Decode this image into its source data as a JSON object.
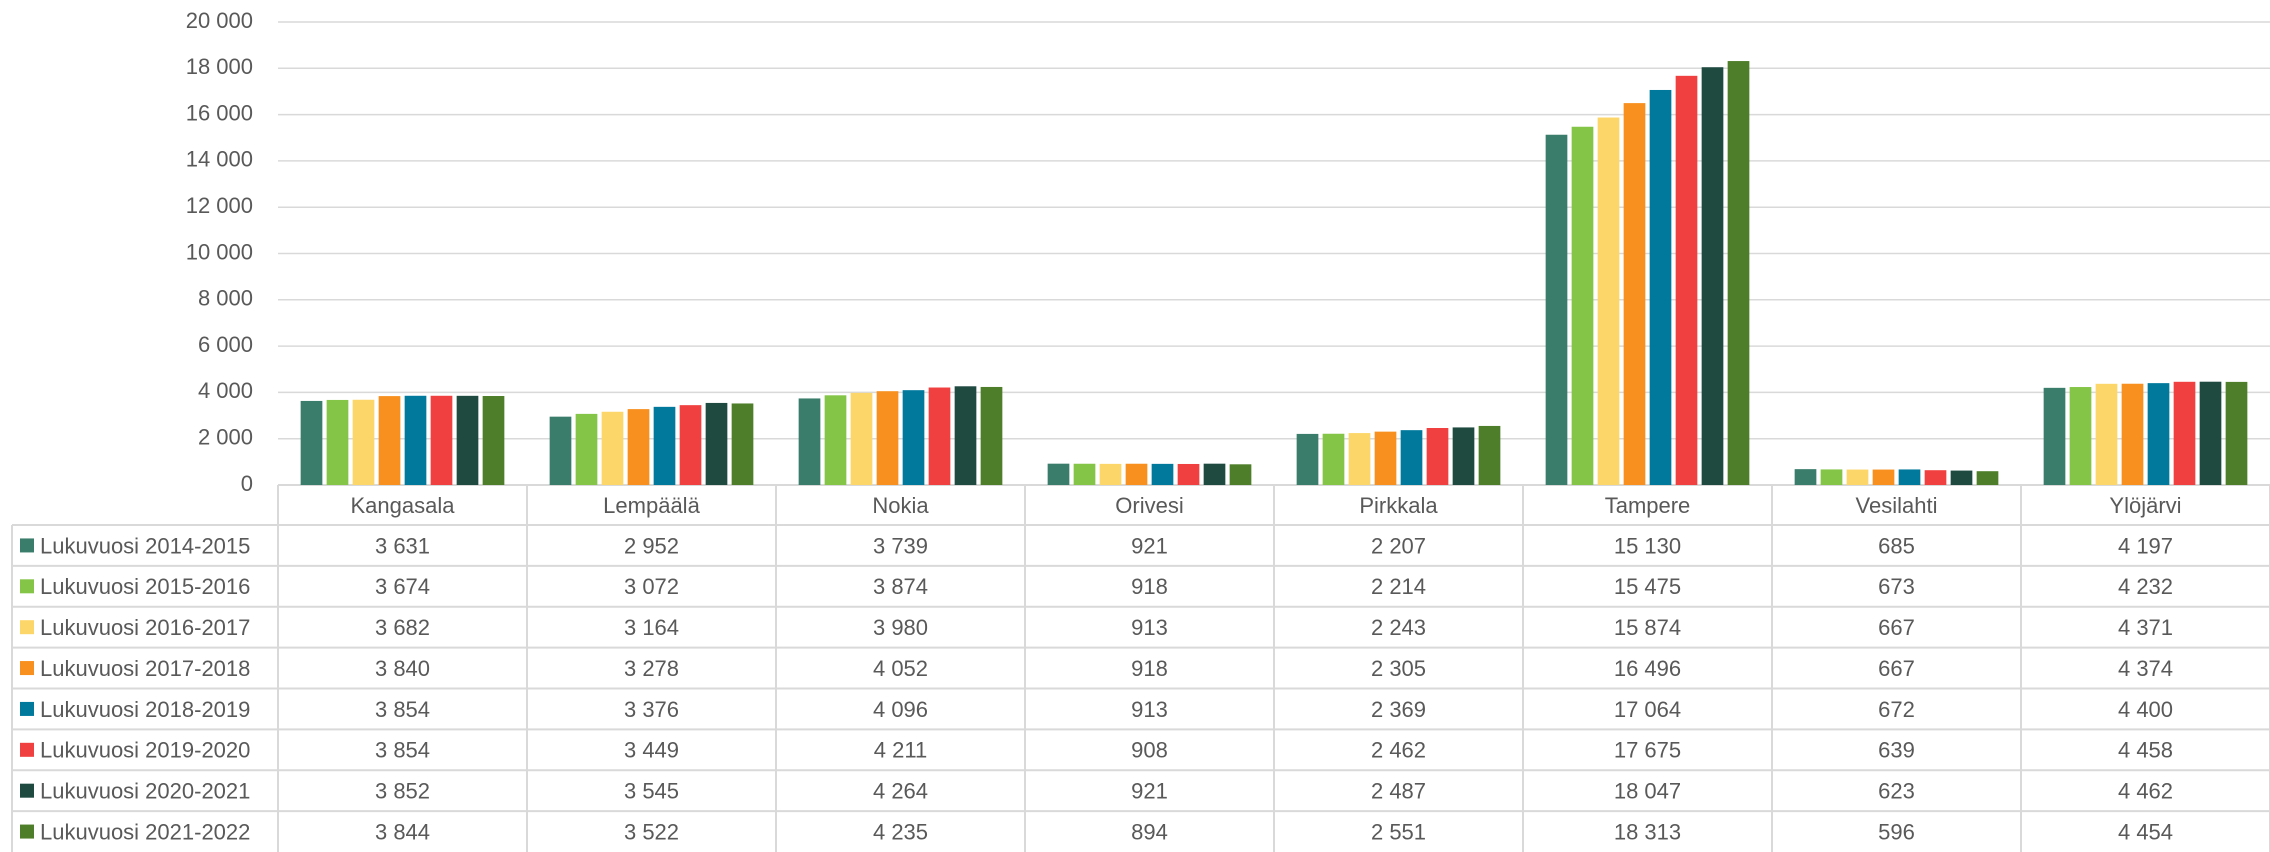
{
  "chart_data": {
    "type": "bar",
    "categories": [
      "Kangasala",
      "Lempäälä",
      "Nokia",
      "Orivesi",
      "Pirkkala",
      "Tampere",
      "Vesilahti",
      "Ylöjärvi"
    ],
    "ylim": [
      0,
      20000
    ],
    "yticks": [
      0,
      {
        "value": 2000,
        "label": "2 000"
      },
      {
        "value": 4000,
        "label": "4 000"
      },
      {
        "value": 6000,
        "label": "6 000"
      },
      {
        "value": 8000,
        "label": "8 000"
      },
      {
        "value": 10000,
        "label": "10 000"
      },
      {
        "value": 12000,
        "label": "12 000"
      },
      {
        "value": 14000,
        "label": "14 000"
      },
      {
        "value": 16000,
        "label": "16 000"
      },
      {
        "value": 18000,
        "label": "18 000"
      },
      {
        "value": 20000,
        "label": "20 000"
      }
    ],
    "grid": true,
    "series": [
      {
        "name": "Lukuvuosi 2014-2015",
        "color": "#3a7d6b",
        "values": [
          3631,
          2952,
          3739,
          921,
          2207,
          15130,
          685,
          4197
        ],
        "value_labels": [
          "3 631",
          "2 952",
          "3 739",
          "921",
          "2 207",
          "15 130",
          "685",
          "4 197"
        ]
      },
      {
        "name": "Lukuvuosi 2015-2016",
        "color": "#84c446",
        "values": [
          3674,
          3072,
          3874,
          918,
          2214,
          15475,
          673,
          4232
        ],
        "value_labels": [
          "3 674",
          "3 072",
          "3 874",
          "918",
          "2 214",
          "15 475",
          "673",
          "4 232"
        ]
      },
      {
        "name": "Lukuvuosi 2016-2017",
        "color": "#fdd66a",
        "values": [
          3682,
          3164,
          3980,
          913,
          2243,
          15874,
          667,
          4371
        ],
        "value_labels": [
          "3 682",
          "3 164",
          "3 980",
          "913",
          "2 243",
          "15 874",
          "667",
          "4 371"
        ]
      },
      {
        "name": "Lukuvuosi 2017-2018",
        "color": "#f7901e",
        "values": [
          3840,
          3278,
          4052,
          918,
          2305,
          16496,
          667,
          4374
        ],
        "value_labels": [
          "3 840",
          "3 278",
          "4 052",
          "918",
          "2 305",
          "16 496",
          "667",
          "4 374"
        ]
      },
      {
        "name": "Lukuvuosi 2018-2019",
        "color": "#00799c",
        "values": [
          3854,
          3376,
          4096,
          913,
          2369,
          17064,
          672,
          4400
        ],
        "value_labels": [
          "3 854",
          "3 376",
          "4 096",
          "913",
          "2 369",
          "17 064",
          "672",
          "4 400"
        ]
      },
      {
        "name": "Lukuvuosi 2019-2020",
        "color": "#f04040",
        "values": [
          3854,
          3449,
          4211,
          908,
          2462,
          17675,
          639,
          4458
        ],
        "value_labels": [
          "3 854",
          "3 449",
          "4 211",
          "908",
          "2 462",
          "17 675",
          "639",
          "4 458"
        ]
      },
      {
        "name": "Lukuvuosi 2020-2021",
        "color": "#1f4a40",
        "values": [
          3852,
          3545,
          4264,
          921,
          2487,
          18047,
          623,
          4462
        ],
        "value_labels": [
          "3 852",
          "3 545",
          "4 264",
          "921",
          "2 487",
          "18 047",
          "623",
          "4 462"
        ]
      },
      {
        "name": "Lukuvuosi 2021-2022",
        "color": "#4e7e2a",
        "values": [
          3844,
          3522,
          4235,
          894,
          2551,
          18313,
          596,
          4454
        ],
        "value_labels": [
          "3 844",
          "3 522",
          "4 235",
          "894",
          "2 551",
          "18 313",
          "596",
          "4 454"
        ]
      }
    ]
  }
}
